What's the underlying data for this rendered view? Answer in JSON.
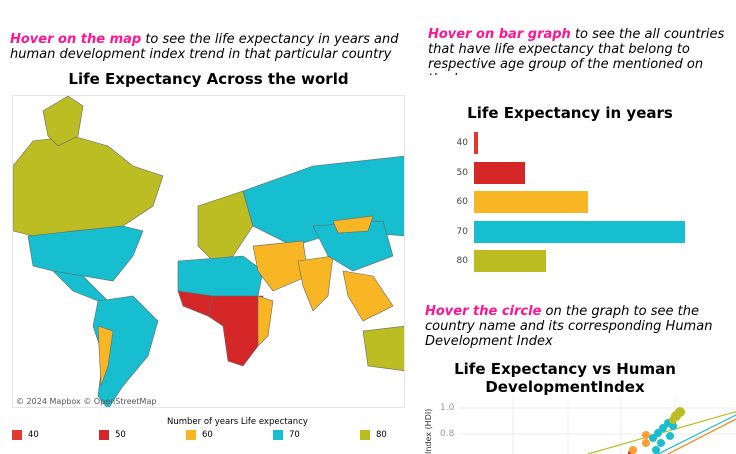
{
  "map_hint": {
    "highlight": "Hover on the map",
    "text": " to see the life expectancy in years and human development index trend in that particular country"
  },
  "map_title": "Life Expectancy Across the world",
  "map_credit": "© 2024 Mapbox  © OpenStreetMap",
  "legend": {
    "title": "Number of years Life expectancy",
    "items": [
      {
        "label": "40",
        "color": "#e03a2f"
      },
      {
        "label": "50",
        "color": "#d62728"
      },
      {
        "label": "60",
        "color": "#f8b524"
      },
      {
        "label": "70",
        "color": "#17becf"
      },
      {
        "label": "80",
        "color": "#bcbd22"
      }
    ]
  },
  "bar_hint": {
    "highlight": "Hover on bar graph",
    "text": " to see the all countries that have life expectancy that belong to respective age group of the mentioned on the bar"
  },
  "bar_title": "Life Expectancy in years",
  "chart_data": [
    {
      "type": "bar",
      "orientation": "horizontal",
      "title": "Life Expectancy in years",
      "categories": [
        "40",
        "50",
        "60",
        "70",
        "80"
      ],
      "values": [
        1,
        12,
        27,
        50,
        17
      ],
      "colors": [
        "#e03a2f",
        "#d62728",
        "#f8b524",
        "#17becf",
        "#bcbd22"
      ]
    },
    {
      "type": "scatter",
      "title": "Life Expectancy vs Human DevelopmentIndex",
      "ylabel": "Index (HDI)",
      "yticks": [
        "1.0",
        "0.8"
      ]
    }
  ],
  "scatter_hint": {
    "highlight": "Hover the circle",
    "text": " on the graph to see the country name and its corresponding Human Development Index"
  },
  "scatter_title": "Life Expectancy vs Human DevelopmentIndex",
  "scatter": {
    "ylabel": "Index (HDI)",
    "yticks": [
      "1.0",
      "0.8"
    ]
  }
}
